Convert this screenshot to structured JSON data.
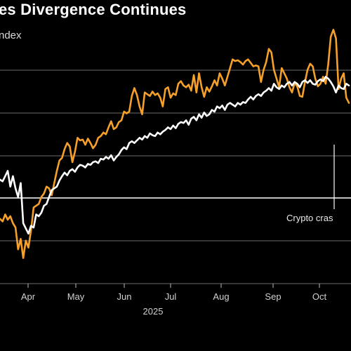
{
  "chart_data": {
    "type": "line",
    "title": "es Divergence Continues",
    "subtitle": "ndex",
    "x_ticks": [
      "Apr",
      "May",
      "Jun",
      "Jul",
      "Aug",
      "Sep",
      "Oct"
    ],
    "year_label": "2025",
    "annotation": "Crypto cras",
    "grid": true,
    "series": [
      {
        "color": "#f5a02a",
        "values": [
          55,
          52,
          60,
          54,
          58,
          50,
          45,
          20,
          32,
          10,
          30,
          22,
          42,
          68,
          70,
          72,
          80,
          84,
          92,
          90,
          82,
          96,
          110,
          122,
          125,
          135,
          142,
          138,
          120,
          132,
          148,
          145,
          146,
          140,
          147,
          142,
          136,
          140,
          148,
          150,
          154,
          152,
          160,
          167,
          158,
          160,
          166,
          168,
          178,
          176,
          178,
          196,
          205,
          197,
          184,
          175,
          200,
          198,
          196,
          201,
          197,
          199,
          194,
          184,
          204,
          206,
          194,
          199,
          197,
          210,
          213,
          208,
          206,
          209,
          202,
          220,
          200,
          222,
          206,
          195,
          206,
          201,
          207,
          214,
          208,
          222,
          216,
          208,
          218,
          228,
          238,
          236,
          237,
          235,
          232,
          236,
          238,
          234,
          230,
          231,
          230,
          212,
          226,
          235,
          250,
          246,
          226,
          216,
          206,
          228,
          222,
          216,
          206,
          200,
          211,
          207,
          196,
          195,
          212,
          226,
          233,
          230,
          216,
          207,
          210,
          218,
          210,
          232,
          264,
          272,
          262,
          204,
          216,
          222,
          194,
          188
        ]
      },
      {
        "color": "#ffffff",
        "values": [
          100,
          98,
          104,
          110,
          92,
          104,
          90,
          80,
          96,
          50,
          44,
          38,
          47,
          45,
          60,
          58,
          62,
          70,
          72,
          80,
          88,
          90,
          92,
          99,
          104,
          108,
          105,
          110,
          112,
          109,
          114,
          117,
          116,
          114,
          118,
          117,
          120,
          121,
          119,
          124,
          123,
          126,
          124,
          128,
          122,
          126,
          129,
          134,
          137,
          135,
          142,
          144,
          142,
          145,
          148,
          146,
          150,
          148,
          153,
          151,
          150,
          154,
          152,
          155,
          157,
          160,
          158,
          162,
          159,
          164,
          166,
          165,
          168,
          163,
          170,
          172,
          168,
          175,
          171,
          177,
          173,
          175,
          180,
          178,
          184,
          182,
          185,
          180,
          186,
          188,
          186,
          184,
          188,
          186,
          189,
          188,
          192,
          195,
          192,
          196,
          198,
          196,
          200,
          202,
          205,
          202,
          210,
          206,
          204,
          208,
          206,
          210,
          212,
          208,
          212,
          210,
          206,
          212,
          214,
          211,
          214,
          210,
          209,
          213,
          215,
          213,
          218,
          216,
          212,
          207,
          200,
          208,
          205,
          204,
          210,
          208
        ]
      }
    ]
  }
}
